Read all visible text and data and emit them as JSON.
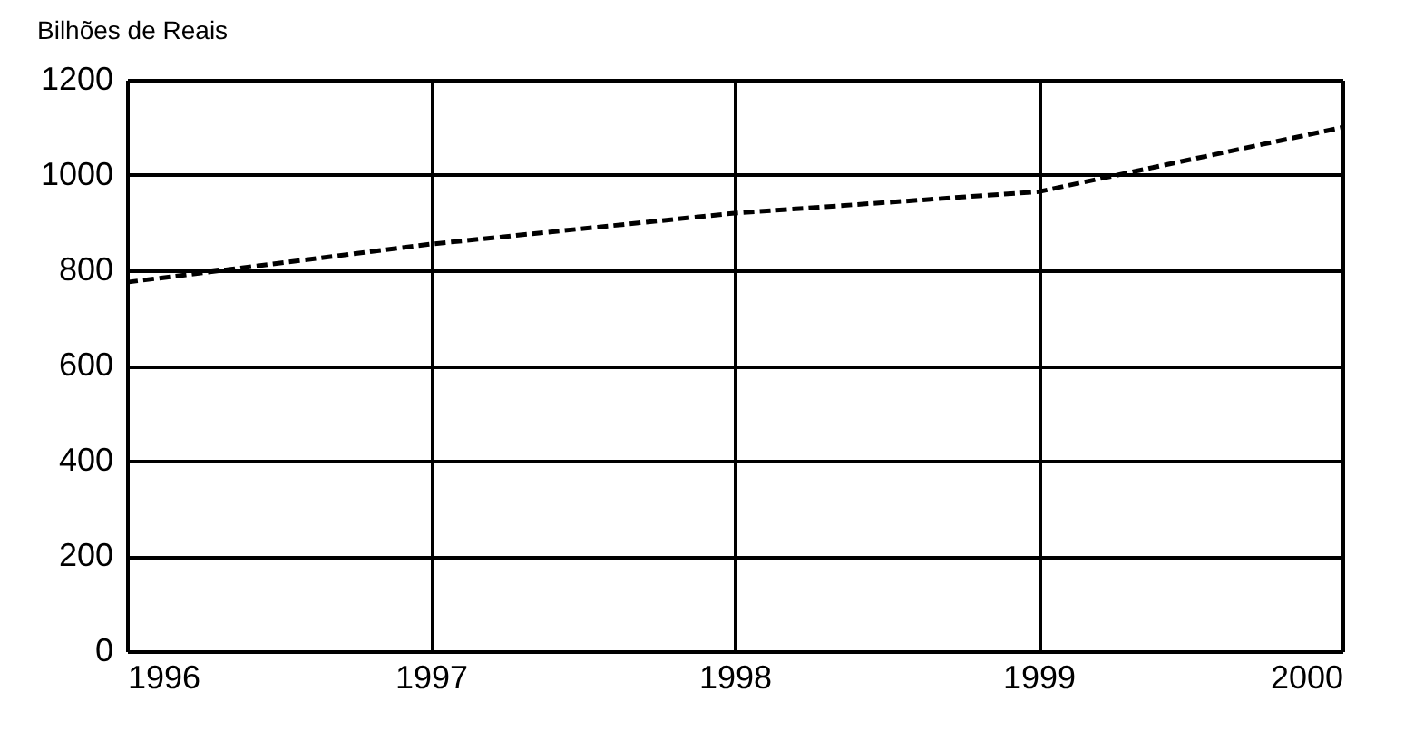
{
  "chart_data": {
    "type": "line",
    "ylabel": "Bilhões de Reais",
    "x": [
      1996,
      1997,
      1998,
      1999,
      2000
    ],
    "series": [
      {
        "color": "#000000",
        "values": [
          775,
          855,
          920,
          965,
          1100
        ]
      }
    ],
    "xlim": [
      1996,
      2000
    ],
    "xticks": [
      1996,
      1997,
      1998,
      1999,
      2000
    ],
    "ylim": [
      0,
      1200
    ],
    "yticks": [
      0,
      200,
      400,
      600,
      800,
      1000,
      1200
    ],
    "grid": true,
    "line_style": "dashed",
    "marker": "none"
  }
}
